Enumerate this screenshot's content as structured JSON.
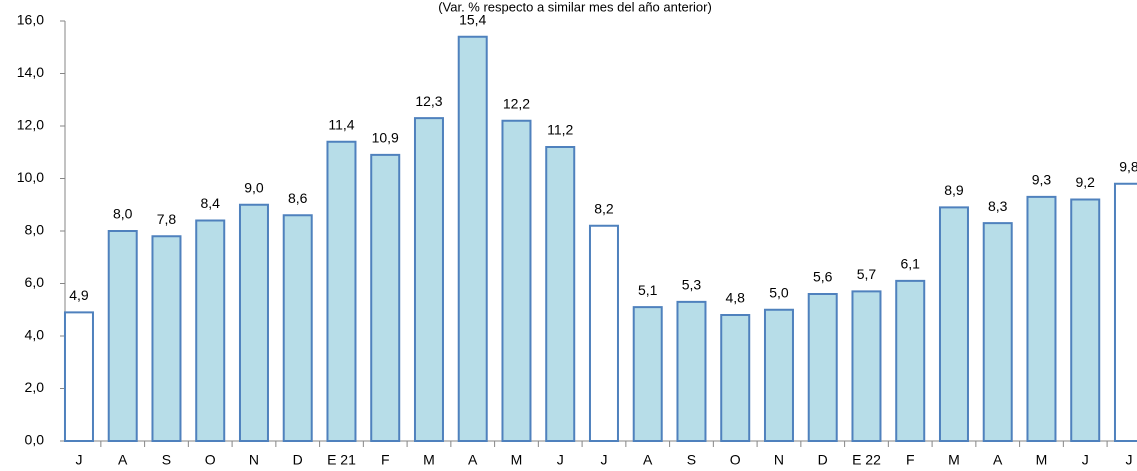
{
  "chart_data": {
    "type": "bar",
    "subtitle": "(Var. % respecto a similar mes del año anterior)",
    "categories": [
      "J",
      "A",
      "S",
      "O",
      "N",
      "D",
      "E 21",
      "F",
      "M",
      "A",
      "M",
      "J",
      "J",
      "A",
      "S",
      "O",
      "N",
      "D",
      "E 22",
      "F",
      "M",
      "A",
      "M",
      "J",
      "J"
    ],
    "values": [
      4.9,
      8.0,
      7.8,
      8.4,
      9.0,
      8.6,
      11.4,
      10.9,
      12.3,
      15.4,
      12.2,
      11.2,
      8.2,
      5.1,
      5.3,
      4.8,
      5.0,
      5.6,
      5.7,
      6.1,
      8.9,
      8.3,
      9.3,
      9.2,
      9.8
    ],
    "value_labels": [
      "4,9",
      "8,0",
      "7,8",
      "8,4",
      "9,0",
      "8,6",
      "11,4",
      "10,9",
      "12,3",
      "15,4",
      "12,2",
      "11,2",
      "8,2",
      "5,1",
      "5,3",
      "4,8",
      "5,0",
      "5,6",
      "5,7",
      "6,1",
      "8,9",
      "8,3",
      "9,3",
      "9,2",
      "9,8"
    ],
    "colors": [
      "#ffffff",
      "#b7dde8",
      "#b7dde8",
      "#b7dde8",
      "#b7dde8",
      "#b7dde8",
      "#b7dde8",
      "#b7dde8",
      "#b7dde8",
      "#b7dde8",
      "#b7dde8",
      "#b7dde8",
      "#ffffff",
      "#b7dde8",
      "#b7dde8",
      "#b7dde8",
      "#b7dde8",
      "#b7dde8",
      "#b7dde8",
      "#b7dde8",
      "#b7dde8",
      "#b7dde8",
      "#b7dde8",
      "#b7dde8",
      "#ffffff"
    ],
    "edge_color": "#4f81bd",
    "ylim": [
      0,
      16
    ],
    "yticks": [
      {
        "value": 0,
        "label": "0,0"
      },
      {
        "value": 2,
        "label": "2,0"
      },
      {
        "value": 4,
        "label": "4,0"
      },
      {
        "value": 6,
        "label": "6,0"
      },
      {
        "value": 8,
        "label": "8,0"
      },
      {
        "value": 10,
        "label": "10,0"
      },
      {
        "value": 12,
        "label": "12,0"
      },
      {
        "value": 14,
        "label": "14,0"
      },
      {
        "value": 16,
        "label": "16,0"
      }
    ],
    "grid": false
  }
}
